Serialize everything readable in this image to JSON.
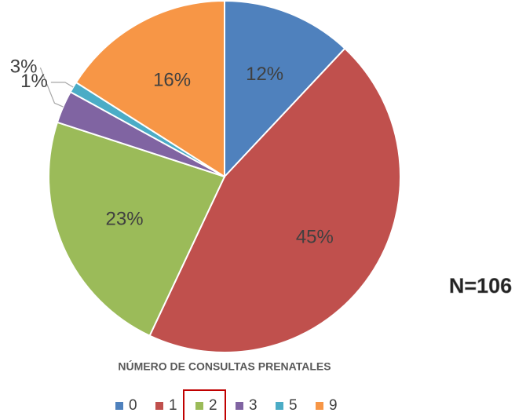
{
  "chart_data": {
    "type": "pie",
    "title": "NÚMERO DE CONSULTAS PRENATALES",
    "annotation": "N=106",
    "categories": [
      "0",
      "1",
      "2",
      "3",
      "5",
      "9"
    ],
    "values": [
      12,
      45,
      23,
      3,
      1,
      16
    ],
    "value_labels": [
      "12%",
      "45%",
      "23%",
      "3%",
      "1%",
      "16%"
    ],
    "colors": [
      "#4f81bd",
      "#c0504d",
      "#9bbb59",
      "#8064a2",
      "#4bacc6",
      "#f79646"
    ],
    "legend": "bottom"
  }
}
